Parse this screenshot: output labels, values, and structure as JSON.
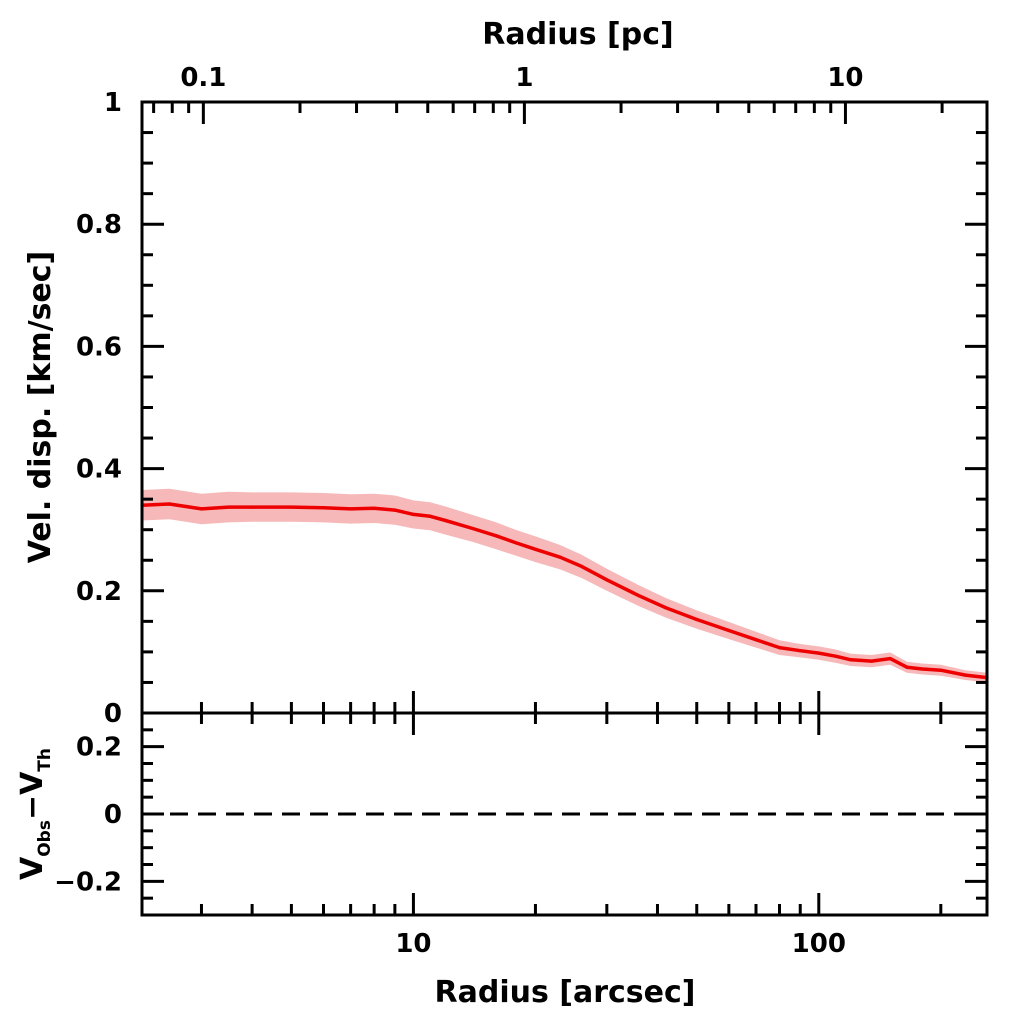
{
  "chart_data": {
    "type": "line",
    "x_scale": "log",
    "top_axis": {
      "label": "Radius [pc]",
      "scale": "log",
      "xlim": [
        0.0644,
        27.6
      ],
      "tick_labels": [
        "0.1",
        "1",
        "10"
      ]
    },
    "main_panel": {
      "xlabel": "",
      "ylabel": "Vel. disp. [km/sec]",
      "xlim": [
        2.14,
        260
      ],
      "ylim": [
        0,
        1
      ],
      "y_tick_labels": [
        "0",
        "0.2",
        "0.4",
        "0.6",
        "0.8",
        "1"
      ],
      "series": [
        {
          "color": "#ee0000",
          "band_color": "#f6b8b8",
          "x": [
            2.14,
            2.5,
            3.0,
            3.5,
            4.0,
            5.0,
            6.0,
            7.0,
            8.0,
            9.0,
            10.0,
            11.0,
            12.0,
            14.0,
            16.0,
            18.0,
            20.0,
            23.0,
            26.0,
            30.0,
            36.0,
            42.0,
            50.0,
            60.0,
            70.0,
            80.0,
            90.0,
            100.0,
            110.0,
            120.0,
            135.0,
            150.0,
            165.0,
            180.0,
            200.0,
            230.0,
            260.0
          ],
          "values": [
            0.34,
            0.342,
            0.334,
            0.337,
            0.337,
            0.337,
            0.336,
            0.334,
            0.335,
            0.332,
            0.325,
            0.322,
            0.315,
            0.302,
            0.29,
            0.278,
            0.268,
            0.255,
            0.24,
            0.218,
            0.192,
            0.172,
            0.153,
            0.135,
            0.12,
            0.107,
            0.102,
            0.098,
            0.093,
            0.087,
            0.085,
            0.089,
            0.075,
            0.072,
            0.07,
            0.062,
            0.058
          ],
          "lower": [
            0.315,
            0.317,
            0.309,
            0.312,
            0.313,
            0.313,
            0.312,
            0.31,
            0.311,
            0.308,
            0.302,
            0.299,
            0.292,
            0.28,
            0.268,
            0.257,
            0.247,
            0.235,
            0.221,
            0.2,
            0.175,
            0.156,
            0.138,
            0.121,
            0.107,
            0.095,
            0.091,
            0.087,
            0.082,
            0.077,
            0.075,
            0.079,
            0.066,
            0.063,
            0.061,
            0.054,
            0.05
          ],
          "upper": [
            0.365,
            0.367,
            0.359,
            0.362,
            0.361,
            0.361,
            0.36,
            0.358,
            0.359,
            0.356,
            0.348,
            0.345,
            0.338,
            0.324,
            0.312,
            0.299,
            0.289,
            0.275,
            0.259,
            0.236,
            0.209,
            0.188,
            0.168,
            0.149,
            0.133,
            0.119,
            0.113,
            0.109,
            0.104,
            0.097,
            0.095,
            0.099,
            0.084,
            0.081,
            0.079,
            0.07,
            0.066
          ]
        }
      ]
    },
    "residual_panel": {
      "xlabel": "Radius [arcsec]",
      "ylabel_main": "V",
      "ylabel_sub1": "Obs",
      "ylabel_minus": "−V",
      "ylabel_sub2": "Th",
      "ylim": [
        -0.3,
        0.3
      ],
      "y_tick_labels": [
        "0.2",
        "0",
        "−0.2"
      ],
      "x_tick_labels": [
        "10",
        "100"
      ],
      "reference_line": 0,
      "line_style": "dashed"
    }
  }
}
